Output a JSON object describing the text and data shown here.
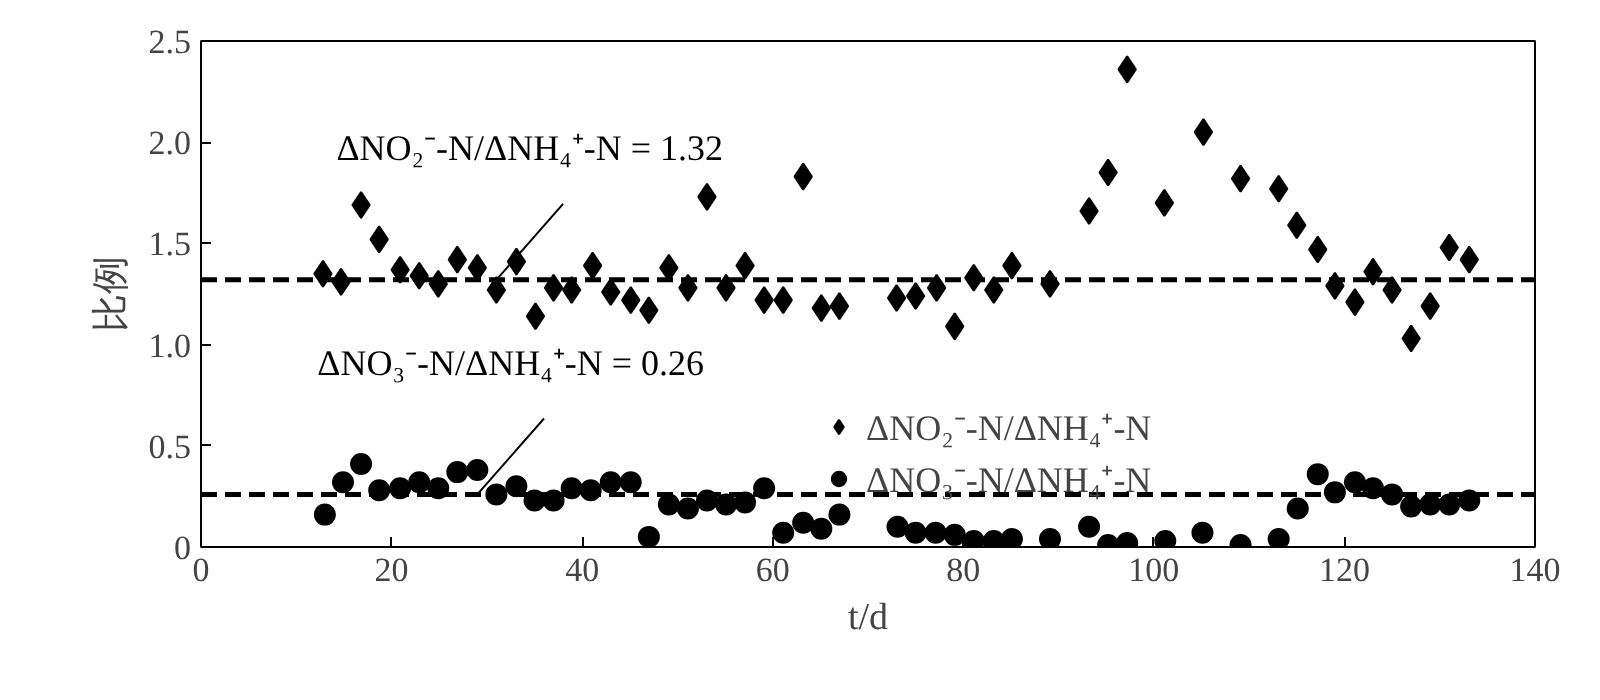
{
  "chart_data": {
    "type": "scatter",
    "xlabel": "t/d",
    "ylabel": "比例",
    "xlim": [
      0,
      140
    ],
    "xticks": [
      0,
      20,
      40,
      60,
      80,
      100,
      120,
      140
    ],
    "ylim": [
      0,
      2.5
    ],
    "yticks": [
      0,
      0.5,
      {
        "value": 1.0,
        "label": "1.0"
      },
      1.5,
      {
        "value": 2.0,
        "label": "2.0"
      },
      2.5
    ],
    "grid": false,
    "legend": "right",
    "series": [
      {
        "name": "ΔNO₂⁻-N/ΔNH₄⁺-N",
        "color": "#000000",
        "marker": "diamond",
        "x": [
          12.8,
          14.7,
          16.8,
          18.7,
          20.9,
          22.9,
          24.9,
          26.9,
          29.0,
          31.0,
          33.1,
          35.1,
          37.0,
          38.9,
          41.1,
          43.0,
          45.1,
          47.0,
          49.1,
          51.1,
          53.1,
          55.1,
          57.1,
          59.1,
          61.1,
          63.2,
          65.1,
          67.0,
          73.0,
          75.0,
          77.2,
          79.1,
          81.1,
          83.2,
          85.1,
          89.1,
          93.2,
          95.2,
          97.2,
          101.1,
          105.2,
          109.1,
          113.1,
          115.0,
          117.2,
          119.0,
          121.1,
          123.0,
          125.0,
          127.0,
          129.0,
          131.0,
          133.1
        ],
        "values": [
          1.35,
          1.31,
          1.69,
          1.52,
          1.37,
          1.34,
          1.3,
          1.42,
          1.38,
          1.27,
          1.41,
          1.14,
          1.28,
          1.27,
          1.39,
          1.26,
          1.22,
          1.17,
          1.38,
          1.28,
          1.73,
          1.28,
          1.39,
          1.22,
          1.22,
          1.83,
          1.18,
          1.19,
          1.23,
          1.24,
          1.28,
          1.09,
          1.33,
          1.27,
          1.39,
          1.3,
          1.66,
          1.85,
          2.36,
          1.7,
          2.05,
          1.82,
          1.77,
          1.59,
          1.47,
          1.29,
          1.21,
          1.36,
          1.27,
          1.03,
          1.19,
          1.48,
          1.42
        ]
      },
      {
        "name": "ΔNO₃⁻-N/ΔNH₄⁺-N",
        "color": "#000000",
        "marker": "circle",
        "x": [
          13.0,
          14.9,
          16.8,
          18.7,
          20.9,
          22.9,
          24.9,
          26.9,
          29.0,
          31.0,
          33.1,
          35.0,
          37.0,
          38.9,
          40.9,
          43.0,
          45.1,
          47.0,
          49.1,
          51.1,
          53.1,
          55.1,
          57.1,
          59.1,
          61.1,
          63.2,
          65.1,
          67.0,
          73.1,
          75.0,
          77.1,
          79.1,
          81.1,
          83.2,
          85.1,
          89.1,
          93.2,
          95.2,
          97.2,
          101.2,
          105.1,
          109.1,
          113.1,
          115.1,
          117.2,
          119.0,
          121.1,
          123.0,
          125.0,
          127.0,
          129.0,
          131.0,
          133.1
        ],
        "values": [
          0.16,
          0.32,
          0.41,
          0.28,
          0.29,
          0.32,
          0.29,
          0.37,
          0.38,
          0.26,
          0.3,
          0.23,
          0.23,
          0.29,
          0.28,
          0.32,
          0.32,
          0.05,
          0.21,
          0.19,
          0.23,
          0.21,
          0.22,
          0.29,
          0.07,
          0.12,
          0.09,
          0.16,
          0.1,
          0.07,
          0.07,
          0.06,
          0.03,
          0.03,
          0.04,
          0.04,
          0.1,
          0.01,
          0.02,
          0.03,
          0.07,
          0.01,
          0.04,
          0.19,
          0.36,
          0.27,
          0.32,
          0.29,
          0.26,
          0.2,
          0.21,
          0.21,
          0.23
        ]
      }
    ],
    "ref_lines": [
      {
        "axis": "y",
        "value": 1.32,
        "color": "#000000",
        "line_style": "dashed"
      },
      {
        "axis": "y",
        "value": 0.26,
        "color": "#000000",
        "line_style": "dashed"
      }
    ],
    "annotations": [
      {
        "text": "ΔNO₂⁻-N/ΔNH₄⁺-N = 1.32",
        "x": 31,
        "y": 1.32
      },
      {
        "text": "ΔNO₃⁻-N/ΔNH₄⁺-N = 0.26",
        "x": 29,
        "y": 0.26
      }
    ]
  }
}
